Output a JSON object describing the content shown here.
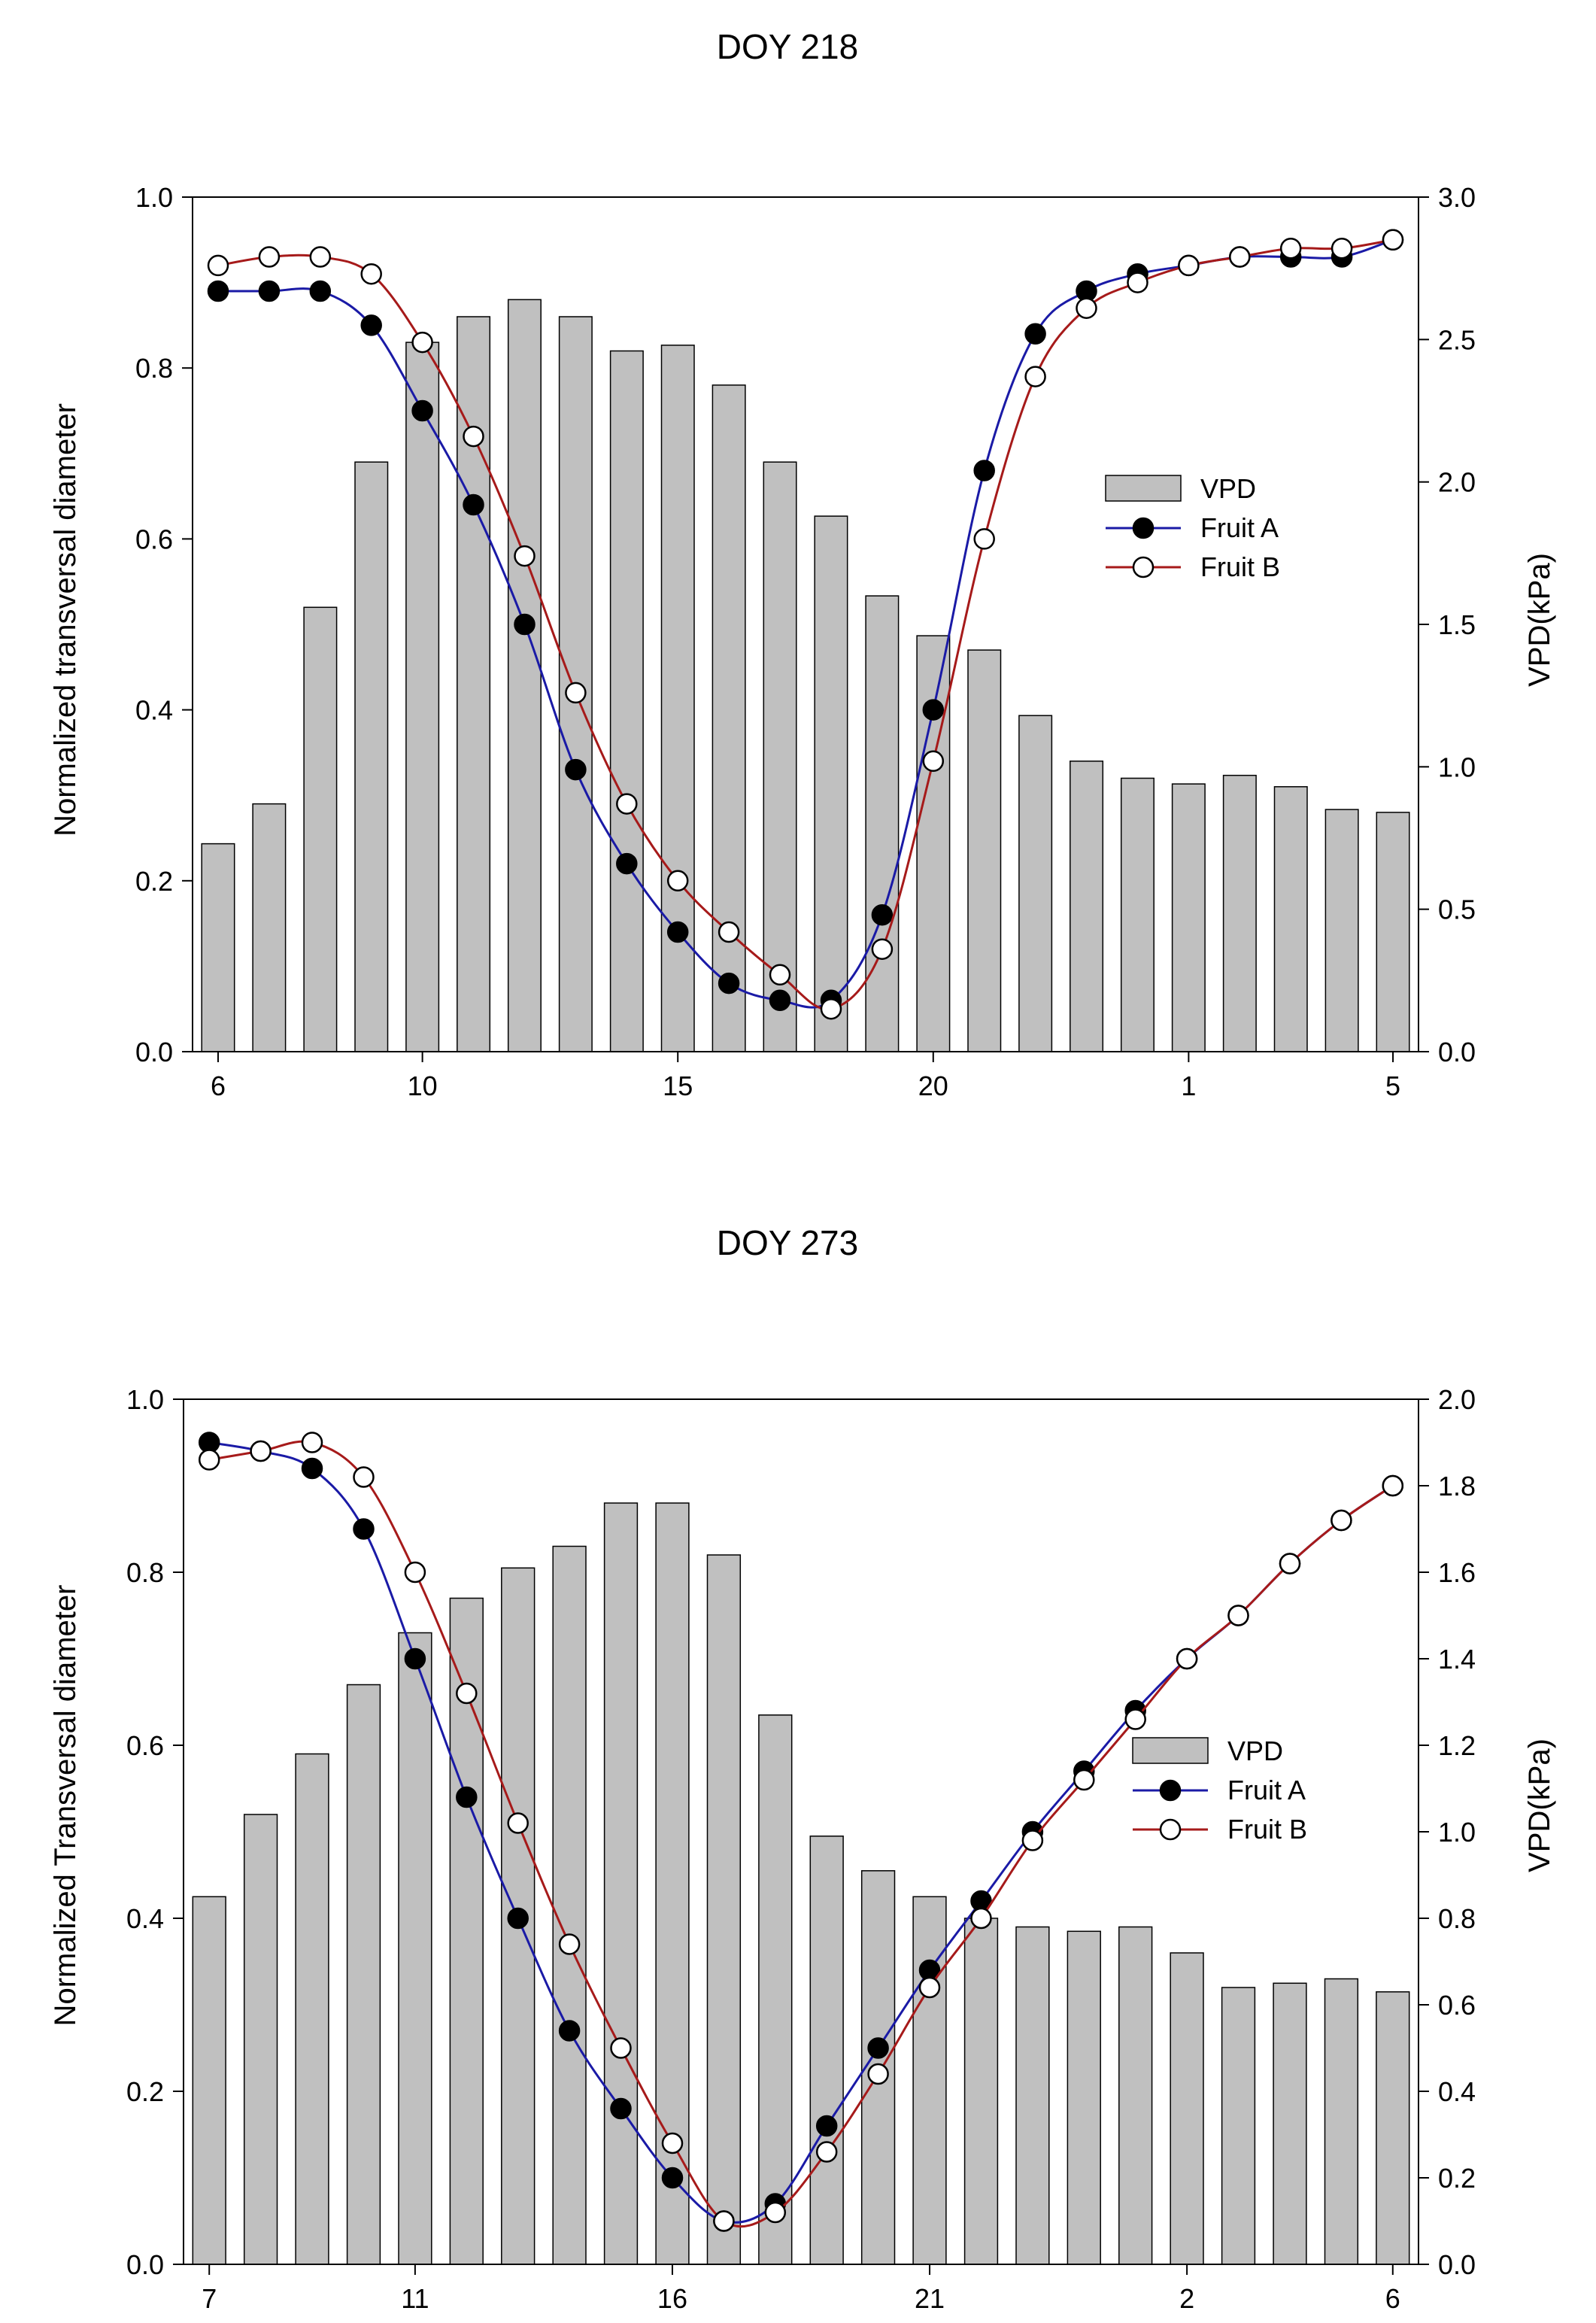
{
  "chart_data": [
    {
      "type": "bar+line",
      "title": "DOY 218",
      "ylabel": "Normalized transversal diameter",
      "y2label": "VPD(kPa)",
      "ylim": [
        0,
        1.0
      ],
      "y2lim": [
        0,
        3.0
      ],
      "yticks": [
        0.0,
        0.2,
        0.4,
        0.6,
        0.8,
        1.0
      ],
      "yticklabels": [
        "0.0",
        "0.2",
        "0.4",
        "0.6",
        "0.8",
        "1.0"
      ],
      "y2ticks": [
        0.0,
        0.5,
        1.0,
        1.5,
        2.0,
        2.5,
        3.0
      ],
      "y2ticklabels": [
        "0.0",
        "0.5",
        "1.0",
        "1.5",
        "2.0",
        "2.5",
        "3.0"
      ],
      "hours": [
        6,
        7,
        8,
        9,
        10,
        11,
        12,
        13,
        14,
        15,
        16,
        17,
        18,
        19,
        20,
        21,
        22,
        23,
        0,
        1,
        2,
        3,
        4,
        5
      ],
      "xticklabels": [
        {
          "index": 0,
          "label": "6"
        },
        {
          "index": 4,
          "label": "10"
        },
        {
          "index": 9,
          "label": "15"
        },
        {
          "index": 14,
          "label": "20"
        },
        {
          "index": 19,
          "label": "1"
        },
        {
          "index": 23,
          "label": "5"
        }
      ],
      "legend": [
        "VPD",
        "Fruit A",
        "Fruit B"
      ],
      "legend_position": "upper-right",
      "series": [
        {
          "name": "VPD",
          "kind": "bar",
          "axis": "right",
          "values": [
            0.73,
            0.87,
            1.56,
            2.07,
            2.49,
            2.58,
            2.64,
            2.58,
            2.46,
            2.48,
            2.34,
            2.07,
            1.88,
            1.6,
            1.46,
            1.41,
            1.18,
            1.02,
            0.96,
            0.94,
            0.97,
            0.93,
            0.85,
            0.84
          ]
        },
        {
          "name": "Fruit A",
          "kind": "line",
          "marker": "filled-circle",
          "color": "#1a1aa6",
          "axis": "left",
          "values": [
            0.89,
            0.89,
            0.89,
            0.85,
            0.75,
            0.64,
            0.5,
            0.33,
            0.22,
            0.14,
            0.08,
            0.06,
            0.06,
            0.16,
            0.4,
            0.68,
            0.84,
            0.89,
            0.91,
            0.92,
            0.93,
            0.93,
            0.93,
            0.95
          ]
        },
        {
          "name": "Fruit B",
          "kind": "line",
          "marker": "open-circle",
          "color": "#a61a1a",
          "axis": "left",
          "values": [
            0.92,
            0.93,
            0.93,
            0.91,
            0.83,
            0.72,
            0.58,
            0.42,
            0.29,
            0.2,
            0.14,
            0.09,
            0.05,
            0.12,
            0.34,
            0.6,
            0.79,
            0.87,
            0.9,
            0.92,
            0.93,
            0.94,
            0.94,
            0.95
          ]
        }
      ]
    },
    {
      "type": "bar+line",
      "title": "DOY 273",
      "ylabel": "Normalized Transversal diameter",
      "y2label": "VPD(kPa)",
      "ylim": [
        0,
        1.0
      ],
      "y2lim": [
        0,
        2.0
      ],
      "yticks": [
        0.0,
        0.2,
        0.4,
        0.6,
        0.8,
        1.0
      ],
      "yticklabels": [
        "0.0",
        "0.2",
        "0.4",
        "0.6",
        "0.8",
        "1.0"
      ],
      "y2ticks": [
        0.0,
        0.2,
        0.4,
        0.6,
        0.8,
        1.0,
        1.2,
        1.4,
        1.6,
        1.8,
        2.0
      ],
      "y2ticklabels": [
        "0.0",
        "0.2",
        "0.4",
        "0.6",
        "0.8",
        "1.0",
        "1.2",
        "1.4",
        "1.6",
        "1.8",
        "2.0"
      ],
      "hours": [
        7,
        8,
        9,
        10,
        11,
        12,
        13,
        14,
        15,
        16,
        17,
        18,
        19,
        20,
        21,
        22,
        23,
        0,
        1,
        2,
        3,
        4,
        5,
        6
      ],
      "xticklabels": [
        {
          "index": 0,
          "label": "7"
        },
        {
          "index": 4,
          "label": "11"
        },
        {
          "index": 9,
          "label": "16"
        },
        {
          "index": 14,
          "label": "21"
        },
        {
          "index": 19,
          "label": "2"
        },
        {
          "index": 23,
          "label": "6"
        }
      ],
      "legend": [
        "VPD",
        "Fruit A",
        "Fruit B"
      ],
      "legend_position": "center-right",
      "series": [
        {
          "name": "VPD",
          "kind": "bar",
          "axis": "right",
          "values": [
            0.85,
            1.04,
            1.18,
            1.34,
            1.46,
            1.54,
            1.61,
            1.66,
            1.76,
            1.76,
            1.64,
            1.27,
            0.99,
            0.91,
            0.85,
            0.8,
            0.78,
            0.77,
            0.78,
            0.72,
            0.64,
            0.65,
            0.66,
            0.63
          ]
        },
        {
          "name": "Fruit A",
          "kind": "line",
          "marker": "filled-circle",
          "color": "#1a1aa6",
          "axis": "left",
          "values": [
            0.95,
            0.94,
            0.92,
            0.85,
            0.7,
            0.54,
            0.4,
            0.27,
            0.18,
            0.1,
            0.05,
            0.07,
            0.16,
            0.25,
            0.34,
            0.42,
            0.5,
            0.57,
            0.64,
            0.7,
            0.75,
            0.81,
            0.86,
            0.9
          ]
        },
        {
          "name": "Fruit B",
          "kind": "line",
          "marker": "open-circle",
          "color": "#a61a1a",
          "axis": "left",
          "values": [
            0.93,
            0.94,
            0.95,
            0.91,
            0.8,
            0.66,
            0.51,
            0.37,
            0.25,
            0.14,
            0.05,
            0.06,
            0.13,
            0.22,
            0.32,
            0.4,
            0.49,
            0.56,
            0.63,
            0.7,
            0.75,
            0.81,
            0.86,
            0.9
          ]
        }
      ]
    }
  ]
}
